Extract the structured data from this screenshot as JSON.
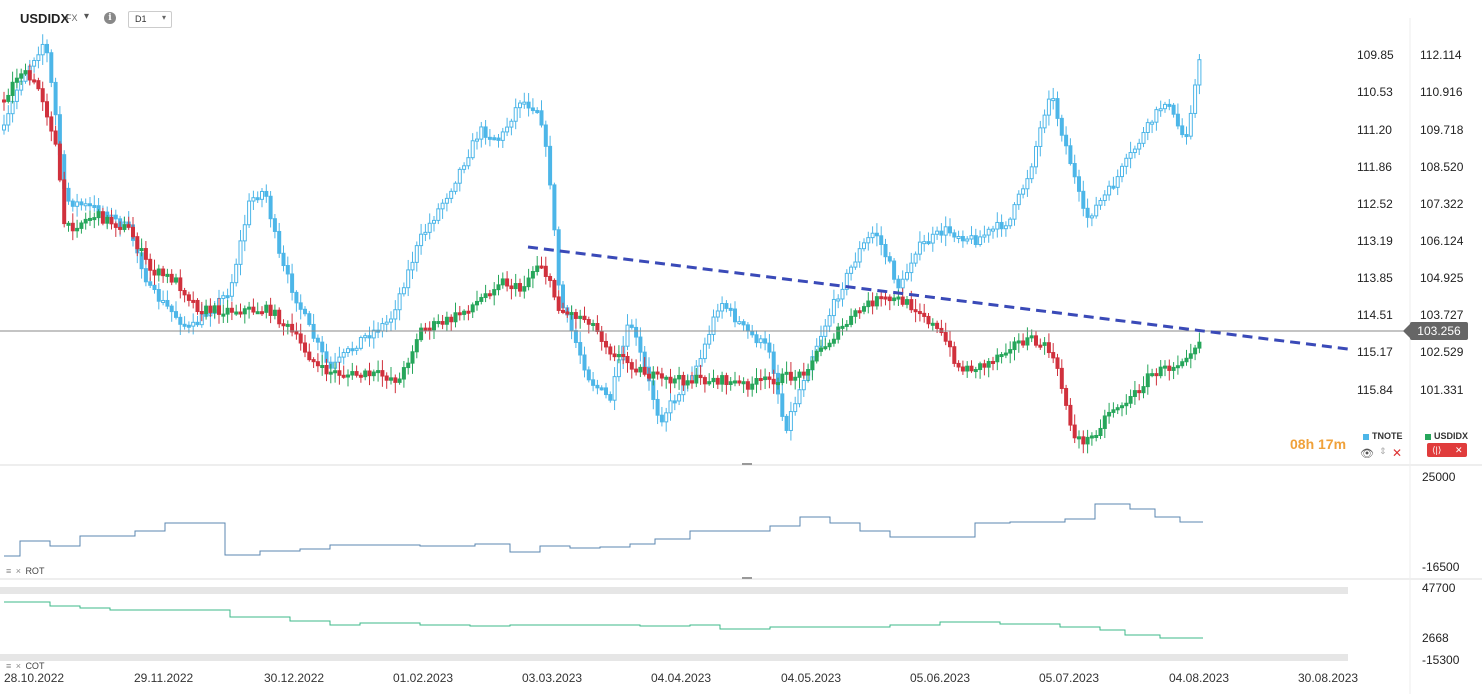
{
  "toolbar": {
    "symbol": "USDIDX",
    "source": "FX",
    "symbol_caret": "▾",
    "info": "i",
    "timeframe": "D1",
    "timeframe_caret": "▾"
  },
  "main_pane": {
    "left_scale_ticks": [
      "109.85",
      "110.53",
      "111.20",
      "111.86",
      "112.52",
      "113.19",
      "113.85",
      "114.51",
      "115.17",
      "115.84"
    ],
    "right_scale_ticks": [
      "112.114",
      "110.916",
      "109.718",
      "108.520",
      "107.322",
      "106.124",
      "104.925",
      "103.727",
      "102.529",
      "101.331"
    ],
    "current_price": "103.256",
    "timer": "08h 17m",
    "legend": [
      {
        "name": "TNOTE",
        "color": "#4db6e8"
      },
      {
        "name": "USDIDX",
        "color": "#26a65b"
      }
    ],
    "legend_red_button_icon": "⟨|⟩",
    "legend_red_button_close": "✕",
    "eye_icon": "👁",
    "updown_icon": "⇕",
    "close_icon": "✕"
  },
  "rot_pane": {
    "label": "ROT",
    "scale_top": "25000",
    "scale_bottom": "-16500",
    "menu_icon": "≡",
    "close_icon": "×"
  },
  "cot_pane": {
    "label": "COT",
    "scale_top": "47700",
    "scale_mid": "2668",
    "scale_bottom": "-15300",
    "menu_icon": "≡",
    "close_icon": "×"
  },
  "x_axis": [
    "28.10.2022",
    "29.11.2022",
    "30.12.2022",
    "01.02.2023",
    "03.03.2023",
    "04.04.2023",
    "04.05.2023",
    "05.06.2023",
    "05.07.2023",
    "04.08.2023",
    "30.08.2023"
  ],
  "colors": {
    "tnote": "#4db6e8",
    "bull": "#26a65b",
    "bear": "#d0313d",
    "trendline": "#3a4ab8",
    "rot_line": "#5b87b0",
    "cot_line": "#3cb98a"
  }
}
